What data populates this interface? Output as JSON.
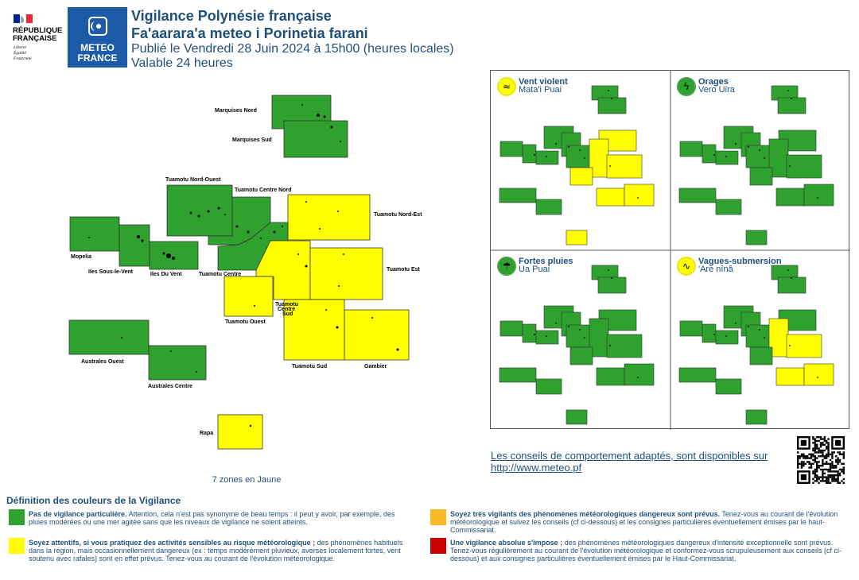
{
  "header": {
    "republic_lines": [
      "RÉPUBLIQUE",
      "FRANÇAISE"
    ],
    "republic_motto": [
      "Liberté",
      "Égalité",
      "Fraternité"
    ],
    "meteo_brand": [
      "METEO",
      "FRANCE"
    ],
    "title_fr": "Vigilance Polynésie française",
    "title_ty": "Fa'aarara'a meteo i Porinetia farani",
    "published": "Publié le Vendredi 28 Juin 2024 à 15h00 (heures locales)",
    "validity": "Valable 24 heures"
  },
  "colors": {
    "green": "#2ea12e",
    "yellow": "#ffff00",
    "orange": "#fbb829",
    "red": "#cc0000",
    "text": "#1f4f7a"
  },
  "zones": {
    "marquises_nord": "Marquises Nord",
    "marquises_sud": "Marquises Sud",
    "tuamotu_nord_ouest": "Tuamotu Nord-Ouest",
    "tuamotu_centre_nord": "Tuamotu Centre Nord",
    "tuamotu_nord_est": "Tuamotu Nord-Est",
    "mopelia": "Mopelia",
    "iles_sous_le_vent": "Iles Sous-le-Vent",
    "iles_du_vent": "Iles Du Vent",
    "tuamotu_centre": "Tuamotu Centre",
    "tuamotu_est": "Tuamotu Est",
    "tuamotu_ouest": "Tuamotu Ouest",
    "tuamotu_centre_sud": [
      "Tuamotu",
      "Centre",
      "Sud"
    ],
    "australes_ouest": "Australes Ouest",
    "australes_centre": "Australes Centre",
    "tuamotu_sud": "Tuamotu Sud",
    "gambier": "Gambier",
    "rapa": "Rapa"
  },
  "zones_summary": "7 zones en Jaune",
  "panels": [
    {
      "title": "Vent violent",
      "subtitle": "Mata'i Puai",
      "icon": "wind-icon",
      "icon_color": "#ffff00"
    },
    {
      "title": "Orages",
      "subtitle": "Vero Uira",
      "icon": "lightning-icon",
      "icon_color": "#2ea12e"
    },
    {
      "title": "Fortes pluies",
      "subtitle": "Ua Puai",
      "icon": "rain-icon",
      "icon_color": "#2ea12e"
    },
    {
      "title": "Vagues-submersion",
      "subtitle": "'Are nînâ",
      "icon": "wave-icon",
      "icon_color": "#ffff00"
    }
  ],
  "advice": {
    "text": "Les conseils de comportement adaptés, sont disponibles sur",
    "url": "http://www.meteo.pf"
  },
  "legend": {
    "title": "Définition des couleurs de la Vigilance",
    "green_bold": "Pas de vigilance particulière.",
    "green_text": " Attention, cela n'est pas synonyme de beau temps : il peut y avoir, par exemple, des pluies modérées ou une mer agitée sans que les niveaux de vigilance ne soient atteints.",
    "yellow_bold": "Soyez attentifs, si vous pratiquez des activités sensibles au risque météorologique ;",
    "yellow_text": " des phénomènes habituels dans la région, mais occasionnellement dangereux (ex : temps modérément pluvieux, averses localement fortes, vent soutenu avec rafales) sont en effet prévus. Tenez-vous au courant de l'évolution météorologique.",
    "orange_bold": "Soyez très vigilants des phénomènes météorologiques dangereux sont prévus.",
    "orange_text": " Tenez-vous au courant de l'évolution météorologique et suivez les conseils (cf ci-dessous) et les consignes particulières éventuellement émises par le haut-Commissariat.",
    "red_bold": "Une vigilance absolue s'impose ;",
    "red_text": " des phénomènes météorologiques dangereux d'intensité exceptionnelle sont prévus. Tenez-vous régulièrement au courant de l'évolution météorologique et conformez-vous scrupuleusement aux conseils (cf ci-dessous) et aux consignes particulières éventuellement émises par le Haut-Commissariat."
  }
}
